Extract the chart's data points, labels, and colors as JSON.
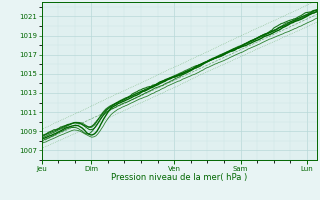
{
  "title": "",
  "xlabel": "Pression niveau de la mer( hPa )",
  "ylabel": "",
  "bg_color": "#e8f4f4",
  "plot_bg_color": "#e0f0f0",
  "grid_major_color": "#b8d8d8",
  "grid_minor_color": "#cce4e4",
  "line_color_main": "#006600",
  "line_color_band": "#449944",
  "ylim": [
    1006.0,
    1022.5
  ],
  "yticks": [
    1007,
    1009,
    1011,
    1013,
    1015,
    1017,
    1019,
    1021
  ],
  "day_positions": [
    0,
    0.75,
    2.0,
    3.0,
    4.0
  ],
  "day_labels": [
    "Jeu",
    "Dim",
    "Ven",
    "Sam",
    "Lun"
  ],
  "n_points": 300,
  "xlim": [
    0,
    4.15
  ]
}
